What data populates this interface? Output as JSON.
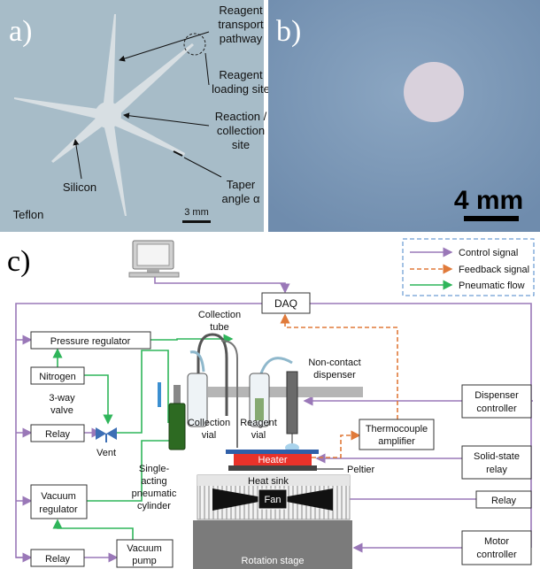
{
  "panel_a": {
    "label": "a)",
    "annotations": [
      [
        "Reagent",
        "transport",
        "pathway"
      ],
      [
        "Reagent",
        "loading site"
      ],
      [
        "Reaction /",
        "collection",
        "site"
      ],
      [
        "Taper",
        "angle α"
      ],
      [
        "Silicon"
      ],
      [
        "Teflon"
      ]
    ],
    "scale_bar": "3 mm"
  },
  "panel_b": {
    "label": "b)",
    "scale_bar": "4 mm"
  },
  "panel_c": {
    "label": "c)",
    "legend": [
      "Control signal",
      "Feedback signal",
      "Pneumatic flow"
    ],
    "daq": "DAQ",
    "pressure_regulator": "Pressure regulator",
    "nitrogen": "Nitrogen",
    "valve": [
      "3-way",
      "valve"
    ],
    "relay_left": "Relay",
    "vent": "Vent",
    "vacuum_regulator": [
      "Vacuum",
      "regulator"
    ],
    "relay_bottom": "Relay",
    "vacuum_pump": [
      "Vacuum",
      "pump"
    ],
    "collection_tube": [
      "Collection",
      "tube"
    ],
    "dispenser": [
      "Non-contact",
      "dispenser"
    ],
    "collection_vial": [
      "Collection",
      "vial"
    ],
    "reagent_vial": [
      "Reagent",
      "vial"
    ],
    "cylinder": [
      "Single-",
      "acting",
      "pneumatic",
      "cylinder"
    ],
    "thermocouple": [
      "Thermocouple",
      "amplifier"
    ],
    "heater": "Heater",
    "peltier": "Peltier",
    "heat_sink": "Heat sink",
    "fan": "Fan",
    "rotation_stage": "Rotation stage",
    "dispenser_controller": [
      "Dispenser",
      "controller"
    ],
    "solid_state_relay": [
      "Solid-state",
      "relay"
    ],
    "relay_right": "Relay",
    "motor_controller": [
      "Motor",
      "controller"
    ]
  }
}
